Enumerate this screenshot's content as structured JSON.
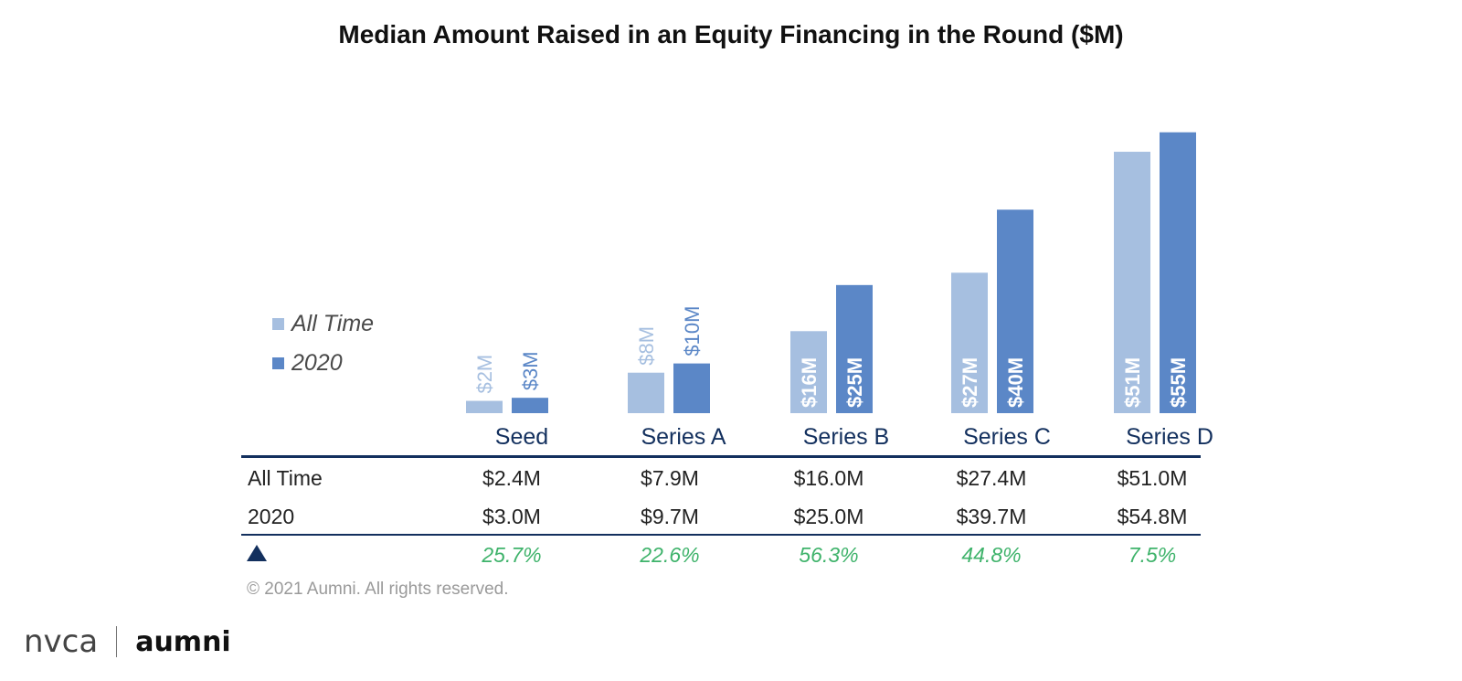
{
  "chart_data": {
    "type": "bar",
    "title": "Median Amount Raised in an Equity Financing in the Round ($M)",
    "categories": [
      "Seed",
      "Series A",
      "Series B",
      "Series C",
      "Series D"
    ],
    "series": [
      {
        "name": "All Time",
        "values": [
          2.4,
          7.9,
          16.0,
          27.4,
          51.0
        ],
        "labels": [
          "$2M",
          "$8M",
          "$16M",
          "$27M",
          "$51M"
        ],
        "color": "#a6bfe0"
      },
      {
        "name": "2020",
        "values": [
          3.0,
          9.7,
          25.0,
          39.7,
          54.8
        ],
        "labels": [
          "$3M",
          "$10M",
          "$25M",
          "$40M",
          "$55M"
        ],
        "color": "#5b87c7"
      }
    ],
    "xlabel": "",
    "ylabel": "",
    "ylim": [
      0,
      56
    ],
    "grid": false,
    "legend": "left"
  },
  "table": {
    "rows": [
      {
        "label": "All Time",
        "cells": [
          "$2.4M",
          "$7.9M",
          "$16.0M",
          "$27.4M",
          "$51.0M"
        ]
      },
      {
        "label": "2020",
        "cells": [
          "$3.0M",
          "$9.7M",
          "$25.0M",
          "$39.7M",
          "$54.8M"
        ]
      }
    ],
    "growth_icon": "triangle-up-icon",
    "growth": [
      "25.7%",
      "22.6%",
      "56.3%",
      "44.8%",
      "7.5%"
    ]
  },
  "colors": {
    "all_time": "#a6bfe0",
    "y2020": "#5b87c7",
    "category_label": "#13305e",
    "rule": "#13305e",
    "growth": "#3fb36b"
  },
  "footer": {
    "copyright": "© 2021 Aumni. All rights reserved.",
    "logo_left": "nvca",
    "logo_right": "aumni"
  }
}
